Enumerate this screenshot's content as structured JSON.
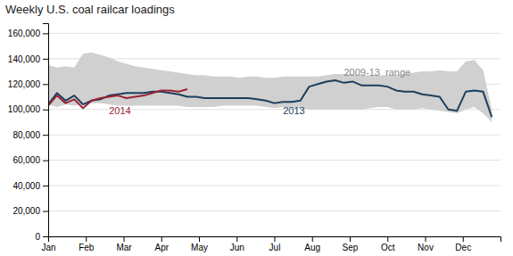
{
  "chart_data": {
    "type": "line",
    "title": "Weekly U.S. coal railcar loadings",
    "x": [
      0,
      1,
      2,
      3,
      4,
      5,
      6,
      7,
      8,
      9,
      10,
      11,
      12,
      13,
      14,
      15,
      16,
      17,
      18,
      19,
      20,
      21,
      22,
      23,
      24,
      25,
      26,
      27,
      28,
      29,
      30,
      31,
      32,
      33,
      34,
      35,
      36,
      37,
      38,
      39,
      40,
      41,
      42,
      43,
      44,
      45,
      46,
      47,
      48,
      49,
      50,
      51
    ],
    "xlim": [
      0,
      52
    ],
    "xticks": [
      {
        "value": 0,
        "label": "Jan"
      },
      {
        "value": 4.333333333333333,
        "label": "Feb"
      },
      {
        "value": 8.666666666666666,
        "label": "Mar"
      },
      {
        "value": 13,
        "label": "Apr"
      },
      {
        "value": 17.333333333333332,
        "label": "May"
      },
      {
        "value": 21.666666666666664,
        "label": "Jun"
      },
      {
        "value": 26,
        "label": "Jul"
      },
      {
        "value": 30.333333333333332,
        "label": "Aug"
      },
      {
        "value": 34.666666666666664,
        "label": "Sep"
      },
      {
        "value": 39,
        "label": "Oct"
      },
      {
        "value": 43.33333333333333,
        "label": "Nov"
      },
      {
        "value": 47.666666666666664,
        "label": "Dec"
      }
    ],
    "ylim": [
      0,
      168000
    ],
    "yticks": [
      0,
      {
        "value": 20000,
        "label": "20,000"
      },
      {
        "value": 40000,
        "label": "40,000"
      },
      {
        "value": 60000,
        "label": "60,000"
      },
      {
        "value": 80000,
        "label": "80,000"
      },
      {
        "value": 100000,
        "label": "100,000"
      },
      {
        "value": 120000,
        "label": "120,000"
      },
      {
        "value": 140000,
        "label": "140,000"
      },
      {
        "value": 160000,
        "label": "160,000"
      }
    ],
    "grid": true,
    "series": [
      {
        "type": "area",
        "color": "#d0d0d0",
        "lower": [
          104000,
          102000,
          104000,
          103000,
          104000,
          105000,
          105000,
          104000,
          103000,
          103000,
          103000,
          103000,
          103000,
          103000,
          103000,
          103000,
          102000,
          102000,
          102000,
          102000,
          103000,
          103000,
          103000,
          103000,
          103000,
          102000,
          101000,
          102000,
          101000,
          101000,
          100000,
          100000,
          100000,
          100000,
          100000,
          100000,
          100000,
          101000,
          102000,
          102000,
          100000,
          100000,
          100000,
          101000,
          100000,
          99000,
          98000,
          97000,
          100000,
          102000,
          97000,
          90000
        ],
        "upper": [
          135000,
          133000,
          134000,
          133000,
          144000,
          145000,
          143000,
          141000,
          138000,
          136000,
          134000,
          133000,
          132000,
          131000,
          130000,
          129000,
          128000,
          127000,
          127000,
          126000,
          126000,
          126000,
          125000,
          126000,
          126000,
          125000,
          125000,
          126000,
          126000,
          126000,
          126000,
          126000,
          127000,
          128000,
          128000,
          128000,
          127000,
          127000,
          127000,
          127000,
          127000,
          128000,
          129000,
          130000,
          130000,
          131000,
          130000,
          130000,
          138000,
          139000,
          131000,
          100000
        ]
      },
      {
        "type": "line",
        "color": "#1b3f5e",
        "values": [
          104000,
          113000,
          107000,
          111000,
          104000,
          107000,
          108000,
          111000,
          112000,
          113000,
          113000,
          113000,
          114000,
          114000,
          113000,
          112000,
          110000,
          110000,
          109000,
          109000,
          109000,
          109000,
          109000,
          109000,
          108000,
          107000,
          105000,
          106000,
          106000,
          107000,
          118000,
          120000,
          122000,
          123000,
          121000,
          122000,
          119000,
          119000,
          119000,
          118000,
          115000,
          114000,
          114000,
          112000,
          111000,
          110000,
          100000,
          99000,
          114000,
          115000,
          114000,
          94000
        ]
      },
      {
        "type": "line",
        "color": "#9b2335",
        "values": [
          103000,
          111000,
          105000,
          108000,
          101000,
          107000,
          109000,
          110000,
          111000,
          109000,
          110000,
          111000,
          113000,
          115000,
          115000,
          114000,
          116000,
          null,
          null,
          null,
          null,
          null,
          null,
          null,
          null,
          null,
          null,
          null,
          null,
          null,
          null,
          null,
          null,
          null,
          null,
          null,
          null,
          null,
          null,
          null,
          null,
          null,
          null,
          null,
          null,
          null,
          null,
          null,
          null,
          null,
          null,
          null
        ]
      }
    ],
    "annotations": [
      {
        "text": "2009-13  range",
        "x": 34,
        "y": 126500,
        "color": "#888888"
      },
      {
        "text": "2013",
        "x": 27,
        "y": 96500,
        "color": "#1b3f5e"
      },
      {
        "text": "2014",
        "x": 7,
        "y": 96500,
        "color": "#9b2335"
      }
    ]
  }
}
